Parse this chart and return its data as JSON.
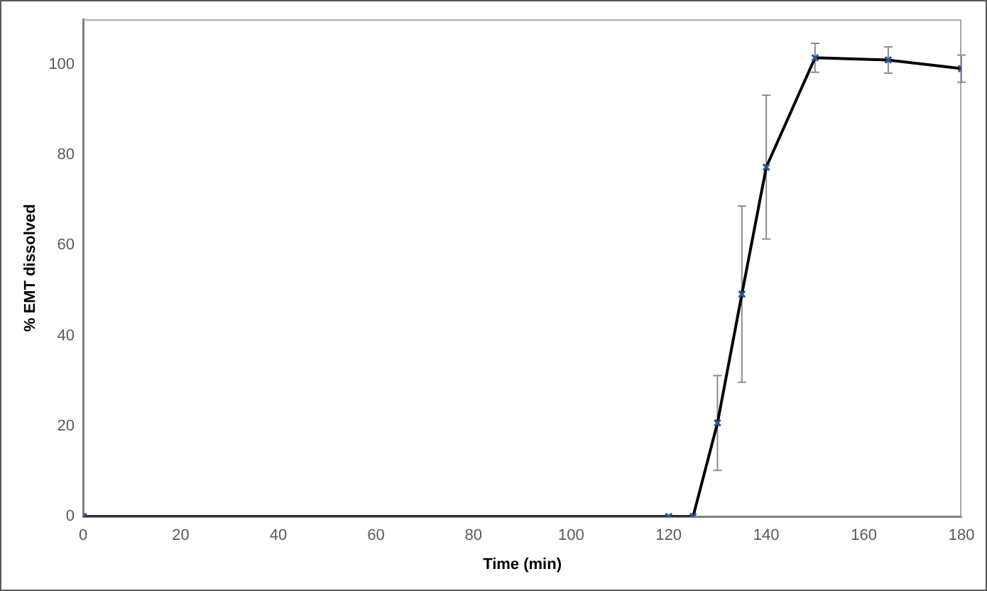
{
  "chart_data": {
    "type": "line",
    "xlabel": "Time (min)",
    "ylabel": "% EMT dissolved",
    "x": [
      0,
      120,
      125,
      130,
      135,
      140,
      150,
      165,
      180
    ],
    "series": [
      {
        "color": "#000000",
        "colors": [
          "#2f5597",
          "#2f5597",
          "#2f5597",
          "#2f5597",
          "#2f5597",
          "#2f5597",
          "#2f5597",
          "#2f5597",
          "#2f5597"
        ],
        "values": [
          0,
          0,
          0,
          20.7,
          49.2,
          77.3,
          101.5,
          101,
          99.1
        ],
        "errors": [
          null,
          null,
          null,
          10.5,
          19.5,
          15.9,
          3.2,
          2.9,
          3
        ]
      }
    ],
    "xlim": [
      0,
      180
    ],
    "xticks": [
      0,
      20,
      40,
      60,
      80,
      100,
      120,
      140,
      160,
      180
    ],
    "ylim": [
      0,
      110
    ],
    "yticks": [
      0,
      20,
      40,
      60,
      80,
      100
    ],
    "grid": false,
    "legend": false,
    "marker": "cross",
    "line_style": "solid"
  }
}
